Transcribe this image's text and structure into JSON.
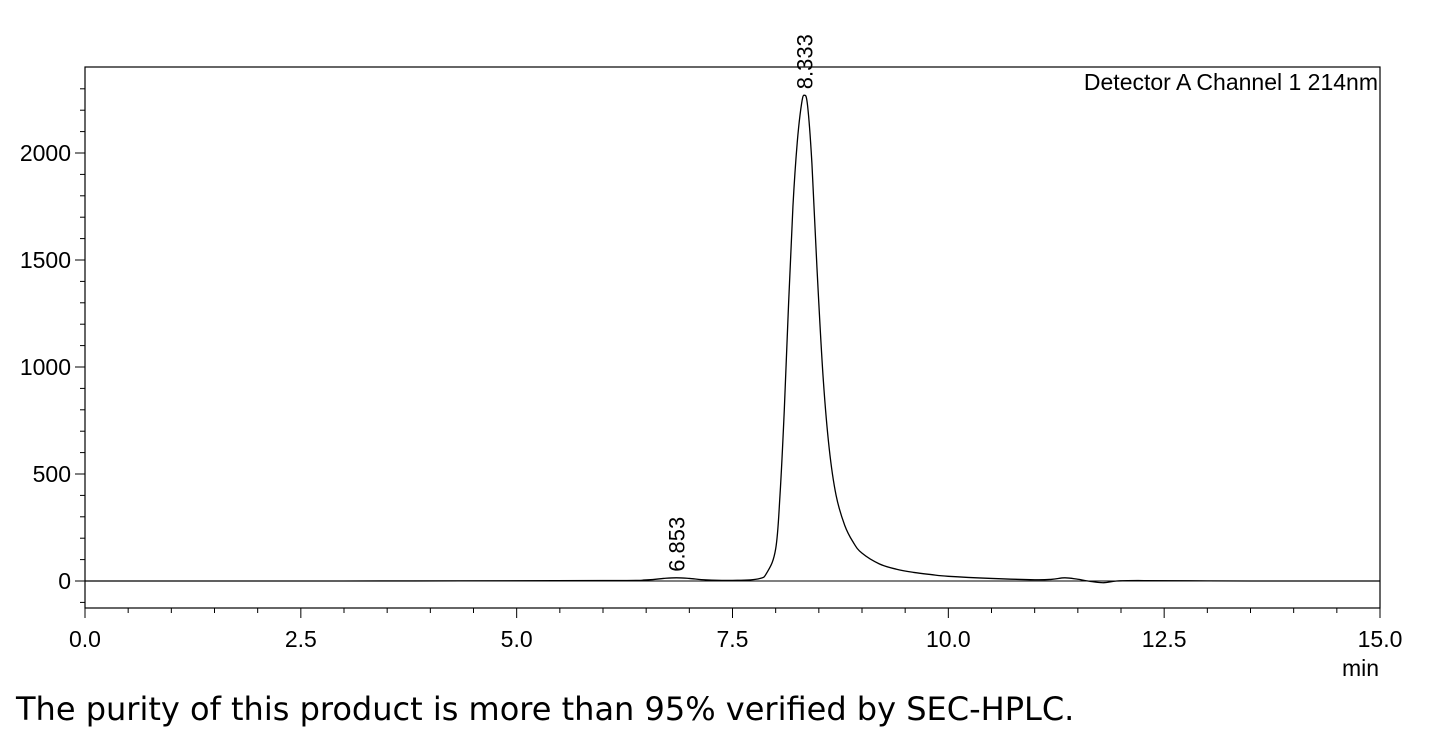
{
  "chart_data": {
    "type": "line",
    "title": "",
    "annotation": "Detector A Channel 1 214nm",
    "xlabel": "min",
    "ylabel": "",
    "xlim": [
      0.0,
      15.0
    ],
    "ylim": [
      -130,
      2400
    ],
    "x_ticks": [
      "0.0",
      "2.5",
      "5.0",
      "7.5",
      "10.0",
      "12.5",
      "15.0"
    ],
    "y_ticks": [
      "0",
      "500",
      "1000",
      "1500",
      "2000"
    ],
    "peaks": [
      {
        "label": "6.853",
        "time": 6.853,
        "height": 15
      },
      {
        "label": "8.333",
        "time": 8.333,
        "height": 2270
      }
    ],
    "series": [
      {
        "x": [
          0.0,
          3.0,
          6.0,
          6.5,
          6.7,
          6.85,
          7.0,
          7.2,
          7.5,
          7.8,
          7.9,
          8.0,
          8.05,
          8.1,
          8.15,
          8.2,
          8.25,
          8.3,
          8.333,
          8.37,
          8.42,
          8.48,
          8.55,
          8.62,
          8.7,
          8.8,
          8.9,
          9.0,
          9.2,
          9.4,
          9.6,
          9.8,
          10.0,
          10.5,
          11.0,
          11.2,
          11.35,
          11.5,
          11.65,
          11.8,
          11.95,
          12.2,
          12.8,
          13.5,
          15.0
        ],
        "y": [
          0,
          0,
          2,
          5,
          12,
          15,
          12,
          5,
          3,
          10,
          40,
          150,
          400,
          800,
          1300,
          1750,
          2050,
          2230,
          2270,
          2220,
          1950,
          1450,
          950,
          620,
          400,
          260,
          180,
          130,
          80,
          55,
          40,
          30,
          22,
          12,
          6,
          8,
          15,
          8,
          -2,
          -8,
          0,
          2,
          1,
          0,
          0
        ]
      }
    ],
    "baseline": 0,
    "grid": false,
    "legend": "none"
  },
  "caption": "The purity of this product is more than 95% verified by SEC-HPLC."
}
